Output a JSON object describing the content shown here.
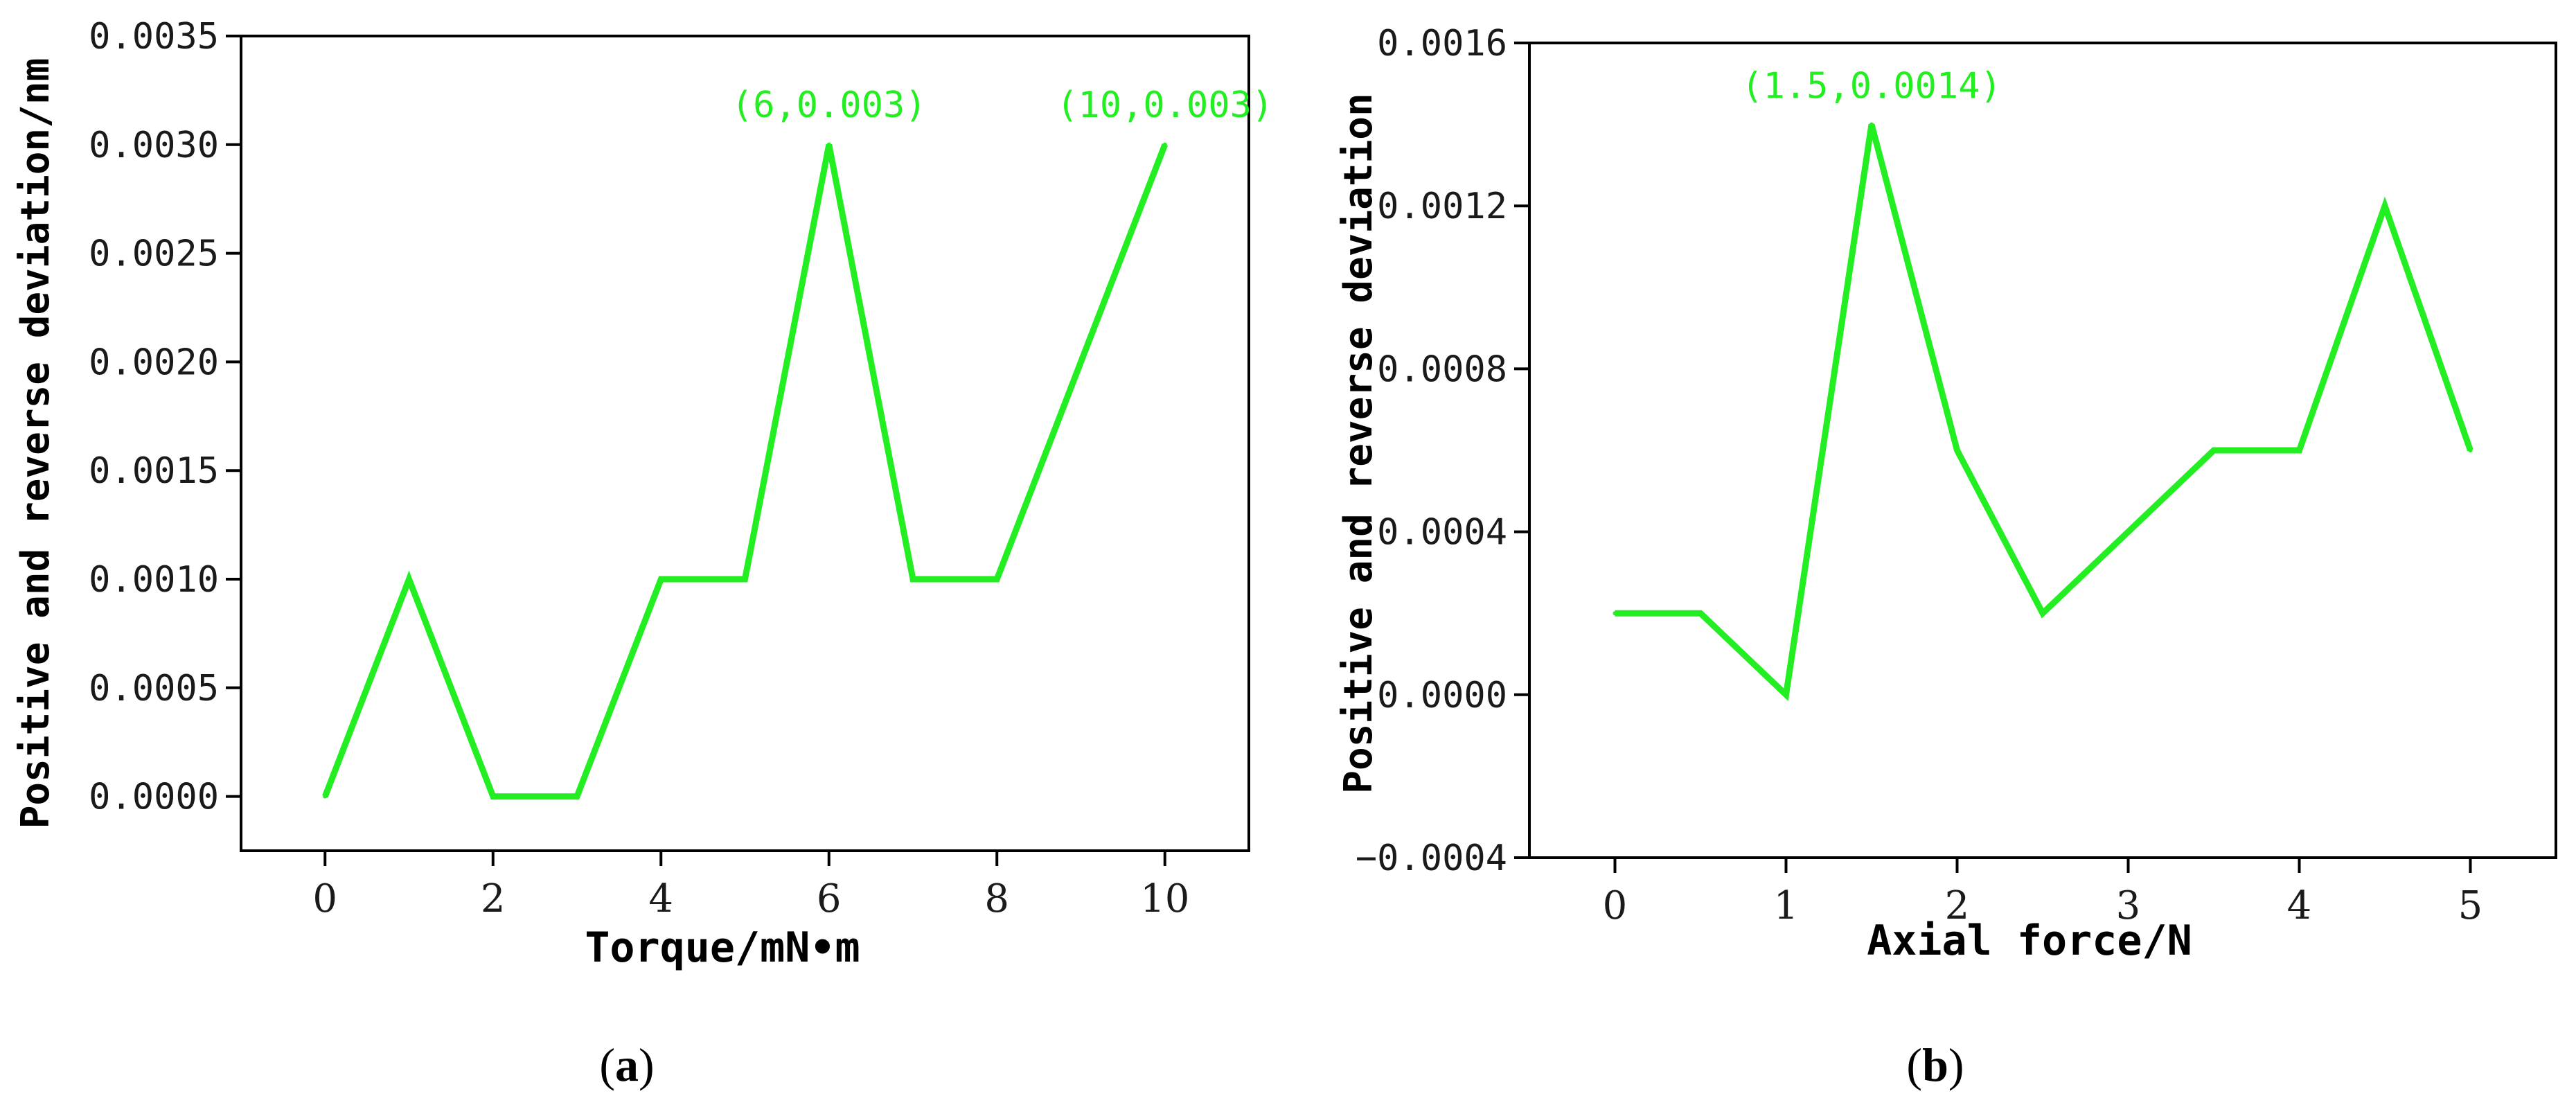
{
  "chart_data": [
    {
      "type": "line",
      "panel_label": {
        "open": "(",
        "letter": "a",
        "close": ")"
      },
      "xlabel": "Torque/mN•m",
      "ylabel": "Positive and reverse deviation/nm",
      "x": [
        0,
        1,
        2,
        3,
        4,
        5,
        6,
        7,
        8,
        9,
        10
      ],
      "series": [
        {
          "values": [
            0.0,
            0.001,
            0.0,
            0.0,
            0.001,
            0.001,
            0.003,
            0.001,
            0.001,
            0.002,
            0.003
          ],
          "color": "#22ee22"
        }
      ],
      "xlim": [
        -1,
        11
      ],
      "ylim": [
        -0.00025,
        0.0035
      ],
      "xticks": [
        0,
        2,
        4,
        6,
        8,
        10
      ],
      "xtick_labels": [
        "0",
        "2",
        "4",
        "6",
        "8",
        "10"
      ],
      "yticks": [
        0.0,
        0.0005,
        0.001,
        0.0015,
        0.002,
        0.0025,
        0.003,
        0.0035
      ],
      "ytick_labels": [
        "0.0000",
        "0.0005",
        "0.0010",
        "0.0015",
        "0.0020",
        "0.0025",
        "0.0030",
        "0.0035"
      ],
      "annotations": [
        {
          "text": "(6,0.003)",
          "x": 6,
          "y": 0.003
        },
        {
          "text": "(10,0.003)",
          "x": 10,
          "y": 0.003
        }
      ],
      "grid": false
    },
    {
      "type": "line",
      "panel_label": {
        "open": "(",
        "letter": "b",
        "close": ")"
      },
      "xlabel": "Axial force/N",
      "ylabel": "Positive and reverse deviation",
      "x": [
        0,
        0.5,
        1,
        1.5,
        2,
        2.5,
        3,
        3.5,
        4,
        4.5,
        5
      ],
      "series": [
        {
          "values": [
            0.0002,
            0.0002,
            0.0,
            0.0014,
            0.0006,
            0.0002,
            0.0004,
            0.0006,
            0.0006,
            0.0012,
            0.0006
          ],
          "color": "#22ee22"
        }
      ],
      "xlim": [
        -0.5,
        5.5
      ],
      "ylim": [
        -0.0004,
        0.0016
      ],
      "xticks": [
        0,
        1,
        2,
        3,
        4,
        5
      ],
      "xtick_labels": [
        "0",
        "1",
        "2",
        "3",
        "4",
        "5"
      ],
      "yticks": [
        -0.0004,
        0.0,
        0.0004,
        0.0008,
        0.0012,
        0.0016
      ],
      "ytick_labels": [
        "−0.0004",
        "0.0000",
        "0.0004",
        "0.0008",
        "0.0012",
        "0.0016"
      ],
      "annotations": [
        {
          "text": "(1.5,0.0014)",
          "x": 1.5,
          "y": 0.0014
        }
      ],
      "grid": false
    }
  ]
}
